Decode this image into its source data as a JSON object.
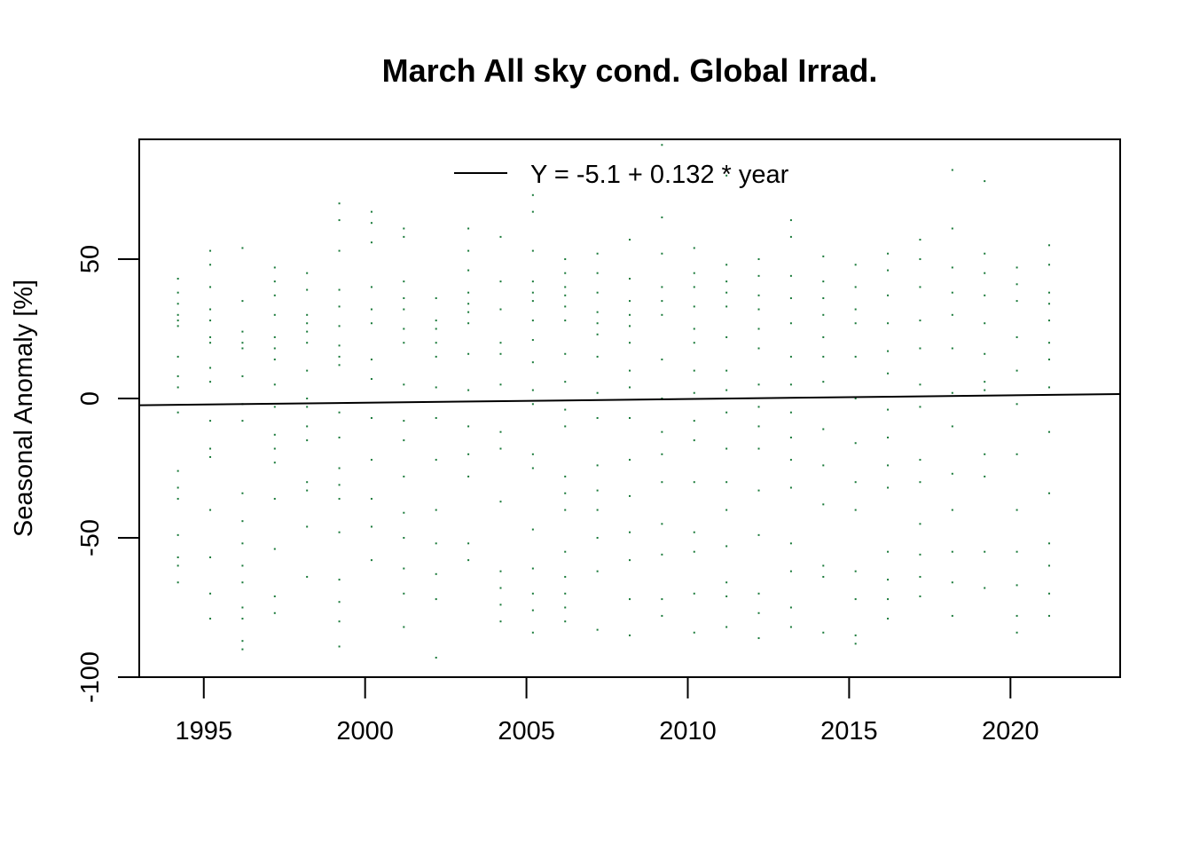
{
  "chart_data": {
    "type": "scatter",
    "title": "March All sky cond. Global Irrad.",
    "xlabel": "",
    "ylabel": "Seasonal Anomaly [%]",
    "xlim": [
      1993.0,
      2023.4
    ],
    "ylim": [
      -100,
      100
    ],
    "x_ticks": [
      "1995",
      "2000",
      "2005",
      "2010",
      "2015",
      "2020"
    ],
    "x_tick_values": [
      1995,
      2000,
      2005,
      2010,
      2015,
      2020
    ],
    "y_ticks": [
      "-100",
      "-50",
      "0",
      "50"
    ],
    "y_tick_values": [
      -100,
      -50,
      0,
      50
    ],
    "grid": false,
    "legend_position": "top",
    "point_color": "#1a7a3a",
    "series": [
      {
        "name": "",
        "points_per_year": [
          {
            "year": 1994.2,
            "y": [
              43,
              38,
              34,
              30,
              28,
              26,
              15,
              8,
              4,
              -5,
              -26,
              -32,
              -36,
              -49,
              -57,
              -60,
              -66
            ]
          },
          {
            "year": 1995.2,
            "y": [
              53,
              48,
              40,
              32,
              28,
              22,
              20,
              11,
              6,
              -8,
              -18,
              -21,
              -40,
              -57,
              -70,
              -79
            ]
          },
          {
            "year": 1996.2,
            "y": [
              54,
              35,
              24,
              20,
              18,
              8,
              -2,
              -8,
              -34,
              -44,
              -52,
              -60,
              -66,
              -75,
              -79,
              -87,
              -90
            ]
          },
          {
            "year": 1997.2,
            "y": [
              47,
              42,
              37,
              30,
              22,
              18,
              14,
              5,
              -3,
              -13,
              -18,
              -23,
              -36,
              -54,
              -71,
              -77
            ]
          },
          {
            "year": 1998.2,
            "y": [
              45,
              39,
              30,
              27,
              24,
              20,
              10,
              0,
              -3,
              -10,
              -15,
              -30,
              -33,
              -46,
              -64
            ]
          },
          {
            "year": 1999.2,
            "y": [
              70,
              64,
              53,
              39,
              33,
              26,
              19,
              15,
              12,
              -5,
              -14,
              -25,
              -31,
              -36,
              -48,
              -65,
              -73,
              -80,
              -89
            ]
          },
          {
            "year": 2000.2,
            "y": [
              67,
              63,
              56,
              40,
              32,
              27,
              14,
              7,
              -7,
              -22,
              -36,
              -46,
              -58
            ]
          },
          {
            "year": 2001.2,
            "y": [
              61,
              58,
              42,
              36,
              32,
              25,
              20,
              5,
              -8,
              -15,
              -28,
              -41,
              -50,
              -61,
              -70,
              -82
            ]
          },
          {
            "year": 2002.2,
            "y": [
              36,
              28,
              25,
              20,
              15,
              4,
              -7,
              -22,
              -40,
              -52,
              -63,
              -72,
              -93
            ]
          },
          {
            "year": 2003.2,
            "y": [
              61,
              53,
              46,
              38,
              34,
              31,
              27,
              16,
              3,
              -10,
              -20,
              -28,
              -52,
              -58
            ]
          },
          {
            "year": 2004.2,
            "y": [
              58,
              42,
              32,
              20,
              16,
              5,
              -12,
              -18,
              -37,
              -62,
              -68,
              -74,
              -80
            ]
          },
          {
            "year": 2005.2,
            "y": [
              73,
              67,
              53,
              42,
              38,
              35,
              28,
              21,
              13,
              3,
              -2,
              -20,
              -25,
              -47,
              -61,
              -70,
              -76,
              -84
            ]
          },
          {
            "year": 2006.2,
            "y": [
              50,
              45,
              40,
              37,
              33,
              28,
              16,
              6,
              -4,
              -10,
              -28,
              -34,
              -40,
              -55,
              -64,
              -70,
              -75,
              -80
            ]
          },
          {
            "year": 2007.2,
            "y": [
              52,
              45,
              38,
              31,
              27,
              23,
              15,
              2,
              -7,
              -24,
              -33,
              -40,
              -50,
              -62,
              -83
            ]
          },
          {
            "year": 2008.2,
            "y": [
              57,
              43,
              35,
              30,
              26,
              20,
              10,
              4,
              -7,
              -22,
              -35,
              -48,
              -58,
              -72,
              -85
            ]
          },
          {
            "year": 2009.2,
            "y": [
              91,
              65,
              52,
              40,
              35,
              30,
              14,
              0,
              -12,
              -20,
              -30,
              -45,
              -56,
              -72,
              -78
            ]
          },
          {
            "year": 2010.2,
            "y": [
              54,
              45,
              40,
              33,
              25,
              20,
              10,
              2,
              -8,
              -15,
              -30,
              -48,
              -55,
              -70,
              -84
            ]
          },
          {
            "year": 2011.2,
            "y": [
              80,
              48,
              42,
              38,
              33,
              22,
              10,
              3,
              -5,
              -18,
              -30,
              -40,
              -53,
              -66,
              -71,
              -82
            ]
          },
          {
            "year": 2012.2,
            "y": [
              50,
              44,
              37,
              32,
              25,
              18,
              5,
              -3,
              -10,
              -18,
              -33,
              -49,
              -70,
              -77,
              -86
            ]
          },
          {
            "year": 2013.2,
            "y": [
              64,
              58,
              44,
              36,
              27,
              15,
              5,
              -5,
              -14,
              -22,
              -32,
              -52,
              -62,
              -75,
              -82
            ]
          },
          {
            "year": 2014.2,
            "y": [
              51,
              42,
              36,
              30,
              22,
              15,
              6,
              -11,
              -24,
              -38,
              -60,
              -64,
              -84
            ]
          },
          {
            "year": 2015.2,
            "y": [
              48,
              40,
              32,
              27,
              15,
              0,
              -16,
              -30,
              -40,
              -62,
              -72,
              -85,
              -88
            ]
          },
          {
            "year": 2016.2,
            "y": [
              52,
              46,
              37,
              27,
              17,
              9,
              -4,
              -14,
              -24,
              -32,
              -55,
              -65,
              -72,
              -79
            ]
          },
          {
            "year": 2017.2,
            "y": [
              57,
              50,
              40,
              28,
              18,
              5,
              -3,
              -22,
              -30,
              -45,
              -56,
              -64,
              -71
            ]
          },
          {
            "year": 2018.2,
            "y": [
              82,
              61,
              47,
              38,
              30,
              18,
              2,
              -10,
              -27,
              -40,
              -55,
              -66,
              -78
            ]
          },
          {
            "year": 2019.2,
            "y": [
              78,
              52,
              45,
              37,
              27,
              16,
              6,
              3,
              -20,
              -28,
              -55,
              -68
            ]
          },
          {
            "year": 2020.2,
            "y": [
              47,
              41,
              35,
              22,
              10,
              -2,
              -20,
              -40,
              -55,
              -67,
              -78,
              -84
            ]
          },
          {
            "year": 2021.2,
            "y": [
              55,
              48,
              38,
              34,
              28,
              20,
              14,
              4,
              -12,
              -34,
              -52,
              -60,
              -70,
              -78
            ]
          }
        ]
      }
    ],
    "trend_line": {
      "legend_label": "Y = -5.1 + 0.132 * year",
      "intercept": -5.1,
      "slope": 0.132,
      "x_offset": 1994
    }
  }
}
